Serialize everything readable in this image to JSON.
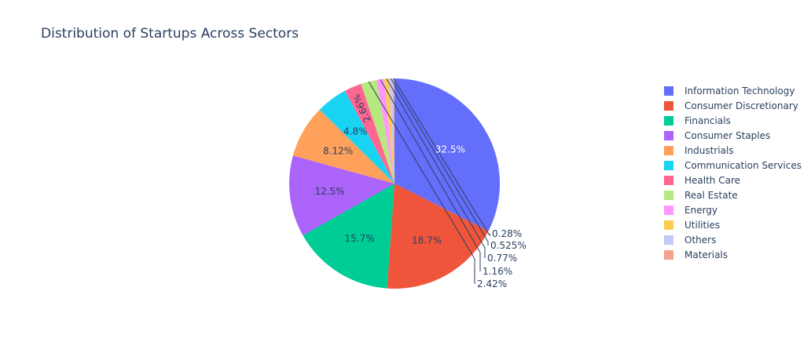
{
  "chart_data": {
    "type": "pie",
    "title": "Distribution of Startups Across Sectors",
    "categories": [
      "Information Technology",
      "Consumer Discretionary",
      "Financials",
      "Consumer Staples",
      "Industrials",
      "Communication Services",
      "Health Care",
      "Real Estate",
      "Energy",
      "Utilities",
      "Others",
      "Materials"
    ],
    "values": [
      32.5,
      18.7,
      15.7,
      12.5,
      8.12,
      4.8,
      2.66,
      2.42,
      1.16,
      0.77,
      0.525,
      0.28
    ],
    "labels": [
      "32.5%",
      "18.7%",
      "15.7%",
      "12.5%",
      "8.12%",
      "4.8%",
      "2.66%",
      "2.42%",
      "1.16%",
      "0.77%",
      "0.525%",
      "0.28%"
    ],
    "colors": [
      "#636efa",
      "#ef553b",
      "#00cc96",
      "#ab63fa",
      "#ffa15a",
      "#19d3f3",
      "#ff6692",
      "#b6e880",
      "#ff97ff",
      "#fecb52",
      "#c5c9fa",
      "#f4a38c"
    ],
    "legend_position": "right"
  }
}
